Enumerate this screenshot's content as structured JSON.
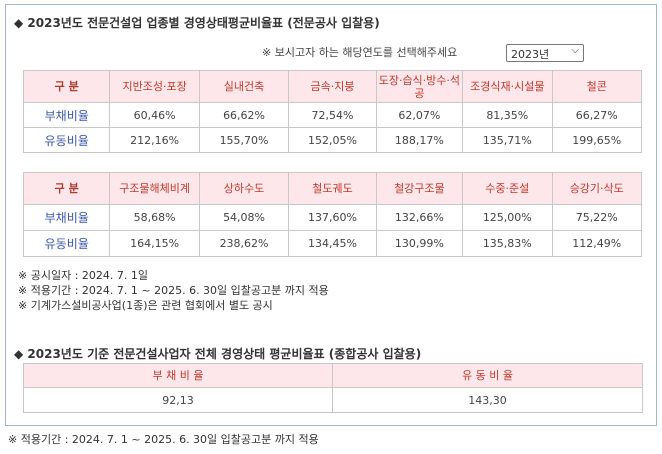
{
  "section1": {
    "title": "◆ 2023년도 전문건설업 업종별 경영상태평균비율표 (전문공사 입찰용)",
    "select_prompt": "※ 보시고자 하는 해당연도를 선택해주세요",
    "selected_year": "2023년",
    "table1": {
      "header_label": "구 분",
      "columns": [
        "지반조성·포장",
        "실내건축",
        "금속·지붕",
        "도장·습식·방수·석공",
        "조경식재·시설물",
        "철콘"
      ],
      "rows": [
        {
          "label": "부채비율",
          "values": [
            "60,46%",
            "66,62%",
            "72,54%",
            "62,07%",
            "81,35%",
            "66,27%"
          ]
        },
        {
          "label": "유동비율",
          "values": [
            "212,16%",
            "155,70%",
            "152,05%",
            "188,17%",
            "135,71%",
            "199,65%"
          ]
        }
      ]
    },
    "table2": {
      "header_label": "구 분",
      "columns": [
        "구조물해체비계",
        "상하수도",
        "철도궤도",
        "철강구조물",
        "수중·준설",
        "승강기·삭도"
      ],
      "rows": [
        {
          "label": "부채비율",
          "values": [
            "58,68%",
            "54,08%",
            "137,60%",
            "132,66%",
            "125,00%",
            "75,22%"
          ]
        },
        {
          "label": "유동비율",
          "values": [
            "164,15%",
            "238,62%",
            "134,45%",
            "130,99%",
            "135,83%",
            "112,49%"
          ]
        }
      ]
    },
    "notes": [
      "※ 공시일자 : 2024. 7. 1일",
      "※ 적용기간 : 2024. 7. 1 ~ 2025. 6. 30일 입찰공고분 까지 적용",
      "※ 기계가스설비공사업(1종)은 관련 협회에서 별도 공시"
    ]
  },
  "section2": {
    "title": "◆ 2023년도 기준 전문건설사업자 전체 경영상태 평균비율표 (종합공사 입찰용)",
    "columns": [
      "부 채 비 율",
      "유 동 비 율"
    ],
    "values": [
      "92,13",
      "143,30"
    ]
  },
  "footer_note": "※ 적용기간 : 2024. 7. 1 ~ 2025. 6. 30일 입찰공고분 까지 적용"
}
